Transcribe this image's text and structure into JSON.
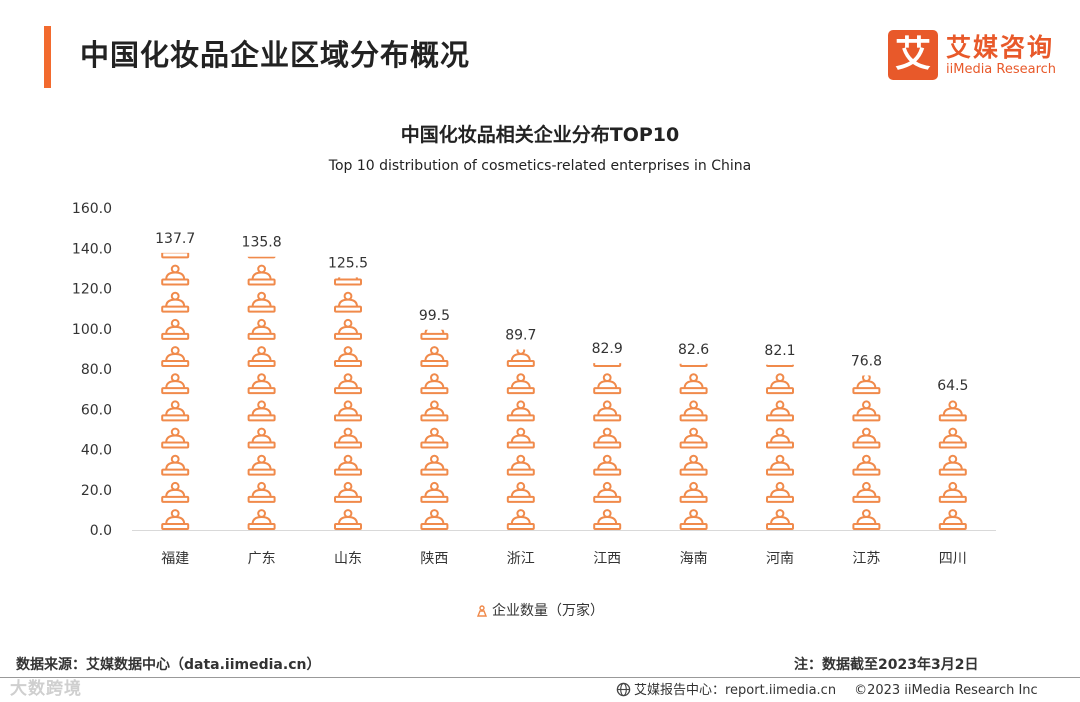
{
  "header": {
    "title": "中国化妆品企业区域分布概况"
  },
  "logo": {
    "mark": "艾",
    "name_cn": "艾媒咨询",
    "name_en": "iiMedia Research"
  },
  "chart_data": {
    "type": "bar",
    "title": "中国化妆品相关企业分布TOP10",
    "subtitle": "Top 10 distribution of cosmetics-related enterprises in China",
    "categories": [
      "福建",
      "广东",
      "山东",
      "陕西",
      "浙江",
      "江西",
      "海南",
      "河南",
      "江苏",
      "四川"
    ],
    "values": [
      137.7,
      135.8,
      125.5,
      99.5,
      89.7,
      82.9,
      82.6,
      82.1,
      76.8,
      64.5
    ],
    "value_labels": [
      "137.7",
      "135.8",
      "125.5",
      "99.5",
      "89.7",
      "82.9",
      "82.6",
      "82.1",
      "76.8",
      "64.5"
    ],
    "series_name": "企业数量（万家）",
    "ylim": [
      0,
      160
    ],
    "yticks": [
      "0.0",
      "20.0",
      "40.0",
      "60.0",
      "80.0",
      "100.0",
      "120.0",
      "140.0",
      "160.0"
    ],
    "grid": false,
    "legend_position": "bottom-center",
    "color": "#F08A4B"
  },
  "footer": {
    "source": "数据来源：艾媒数据中心（data.iimedia.cn）",
    "note": "注：数据截至2023年3月2日",
    "report_center": "艾媒报告中心：report.iimedia.cn",
    "copyright": "©2023 iiMedia Research Inc",
    "watermark": "大数跨境"
  }
}
